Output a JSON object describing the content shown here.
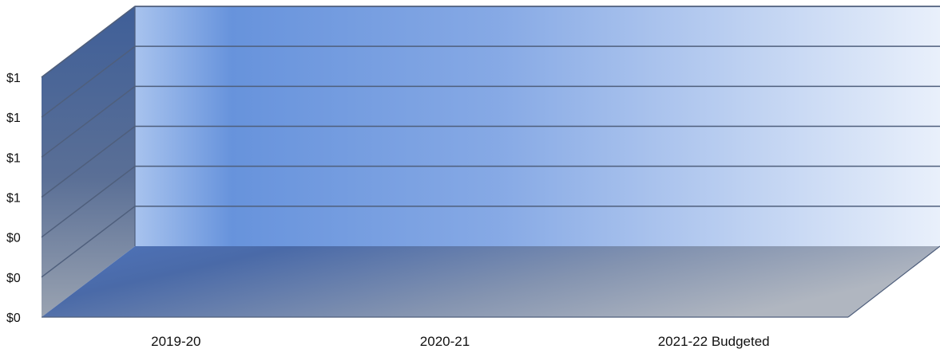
{
  "chart_data": {
    "type": "bar",
    "title": "",
    "xlabel": "",
    "ylabel": "",
    "categories": [
      "2019-20",
      "2020-21",
      "2021-22 Budgeted"
    ],
    "series": [
      {
        "values": [
          0,
          0,
          0
        ]
      }
    ],
    "y_tick_labels": [
      "$0",
      "$0",
      "$0",
      "$1",
      "$1",
      "$1",
      "$1"
    ],
    "ylim": [
      0,
      1
    ],
    "grid": true,
    "three_d": true,
    "colors": {
      "back_wall_light": "#6793dc",
      "back_wall_fade": "#e9f0fb",
      "side_wall": "#3f5f98",
      "floor_dark": "#4a6aa8",
      "floor_light": "#b0b6c0",
      "gridline": "#4f5f7c"
    }
  }
}
